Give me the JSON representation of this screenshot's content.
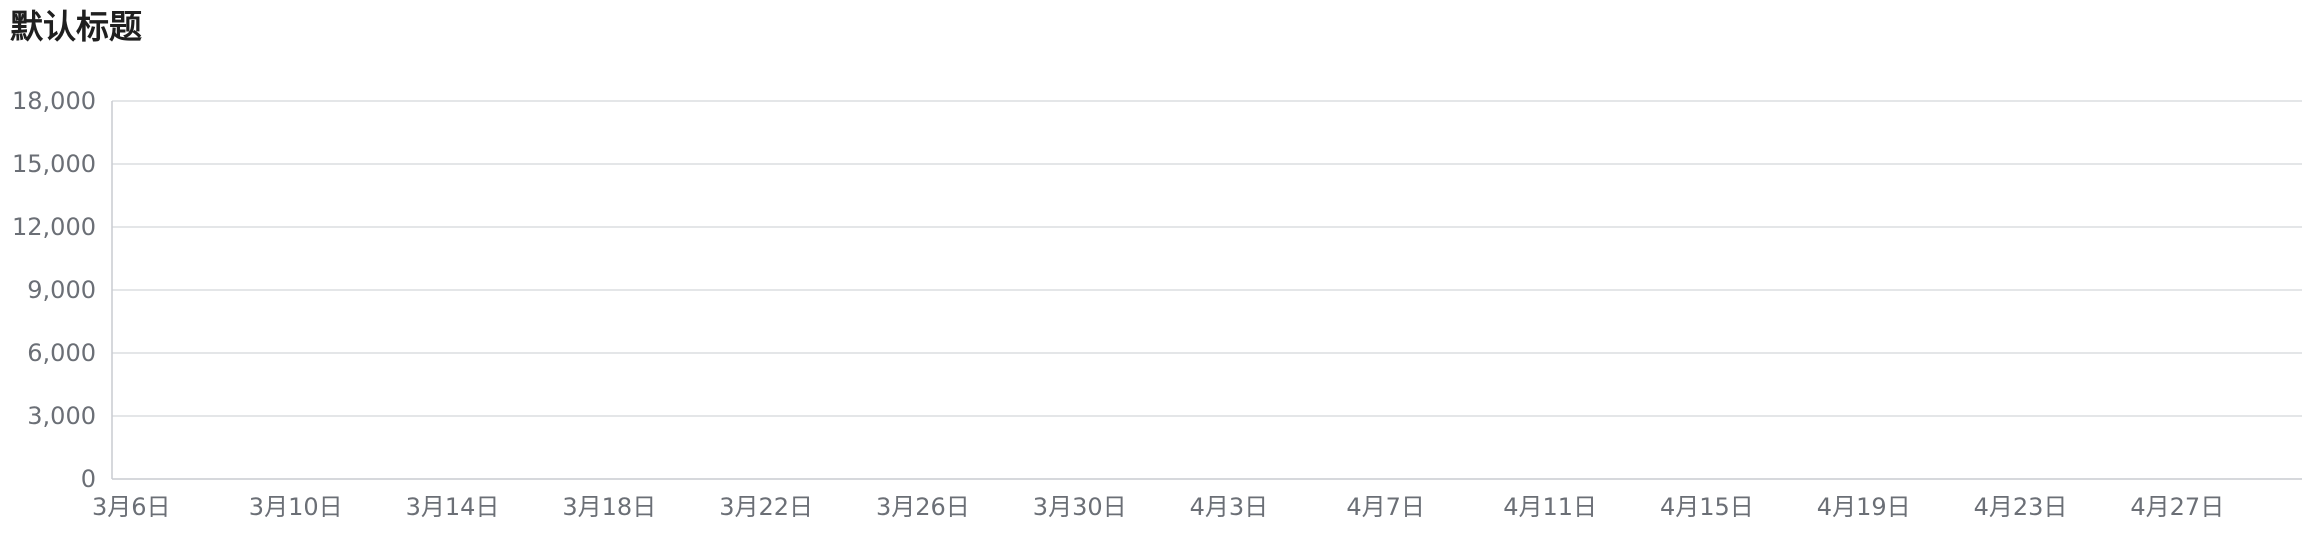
{
  "chart_data": {
    "type": "line",
    "title": "默认标题",
    "xlabel": "",
    "ylabel": "",
    "x_tick_labels": [
      "3月6日",
      "3月10日",
      "3月14日",
      "3月18日",
      "3月22日",
      "3月26日",
      "3月30日",
      "4月3日",
      "4月7日",
      "4月11日",
      "4月15日",
      "4月19日",
      "4月23日",
      "4月27日"
    ],
    "y_tick_labels": [
      "0",
      "3,000",
      "6,000",
      "9,000",
      "12,000",
      "15,000",
      "18,000"
    ],
    "ylim": [
      0,
      18000
    ],
    "y_ticks": [
      0,
      3000,
      6000,
      9000,
      12000,
      15000,
      18000
    ],
    "grid": true,
    "series": []
  }
}
